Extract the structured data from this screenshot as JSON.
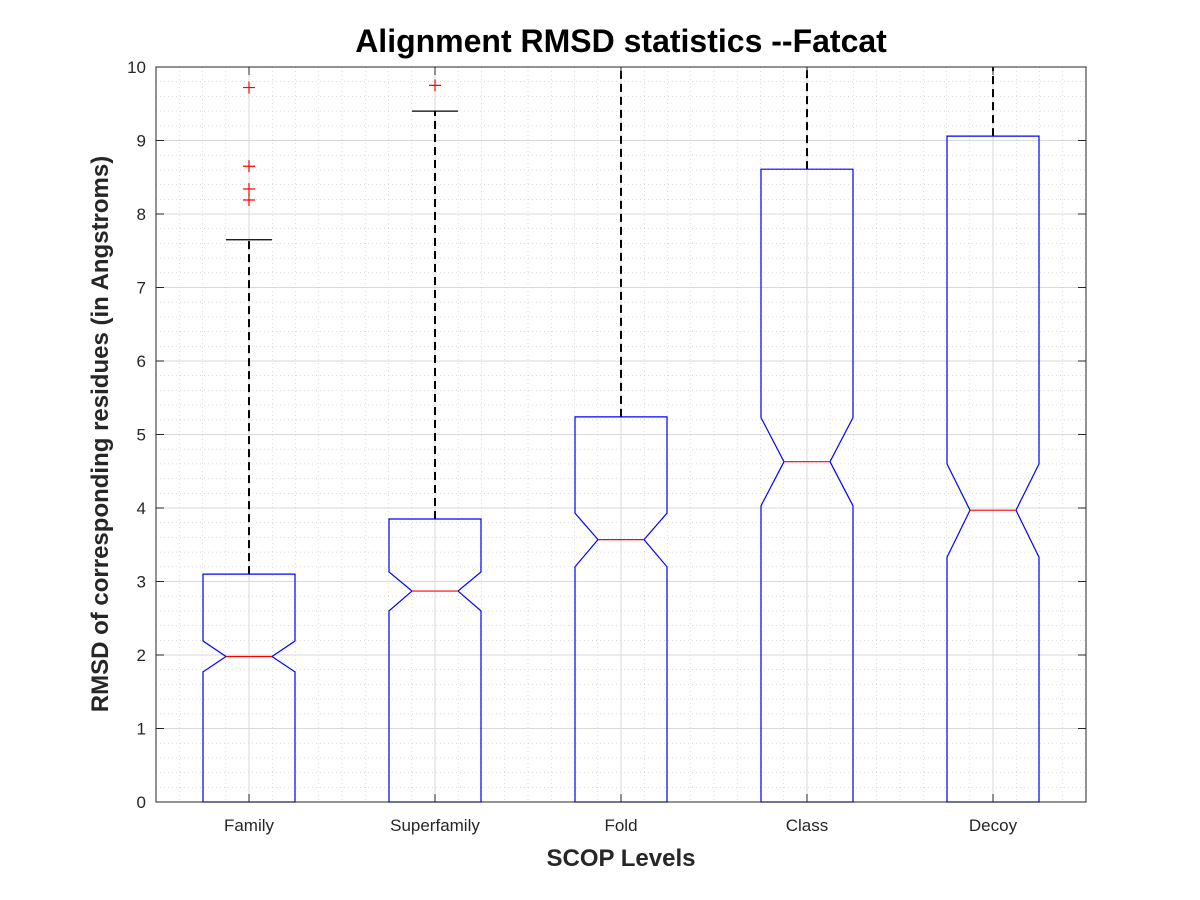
{
  "chart_data": {
    "type": "boxplot",
    "title": "Alignment RMSD statistics --Fatcat",
    "xlabel": "SCOP Levels",
    "ylabel": "RMSD of corresponding residues (in Angstroms)",
    "ylim": [
      0,
      10
    ],
    "yticks": [
      "0",
      "1",
      "2",
      "3",
      "4",
      "5",
      "6",
      "7",
      "8",
      "9",
      "10"
    ],
    "grid": "major and minor",
    "notched": true,
    "colors": {
      "box": "#0000ff",
      "median": "#ff0000",
      "whisker": "#000000",
      "outlier": "#ff0000",
      "grid": "#d9d9d9"
    },
    "categories": [
      "Family",
      "Superfamily",
      "Fold",
      "Class",
      "Decoy"
    ],
    "boxes": [
      {
        "category": "Family",
        "lower_whisker": 0,
        "q1": 0,
        "median": 1.98,
        "q3": 3.1,
        "upper_whisker": 7.65,
        "notch_low": 1.77,
        "notch_high": 2.19,
        "outliers": [
          9.72,
          8.65,
          8.34,
          8.19
        ]
      },
      {
        "category": "Superfamily",
        "lower_whisker": 0,
        "q1": 0,
        "median": 2.87,
        "q3": 3.85,
        "upper_whisker": 9.4,
        "notch_low": 2.6,
        "notch_high": 3.13,
        "outliers": [
          9.75
        ]
      },
      {
        "category": "Fold",
        "lower_whisker": 0,
        "q1": 0,
        "median": 3.57,
        "q3": 5.24,
        "upper_whisker": 10,
        "notch_low": 3.2,
        "notch_high": 3.93,
        "outliers": []
      },
      {
        "category": "Class",
        "lower_whisker": 0,
        "q1": 0,
        "median": 4.63,
        "q3": 8.61,
        "upper_whisker": 10,
        "notch_low": 4.03,
        "notch_high": 5.23,
        "outliers": []
      },
      {
        "category": "Decoy",
        "lower_whisker": 0,
        "q1": 0,
        "median": 3.97,
        "q3": 9.06,
        "upper_whisker": 10,
        "notch_low": 3.33,
        "notch_high": 4.6,
        "outliers": []
      }
    ]
  }
}
